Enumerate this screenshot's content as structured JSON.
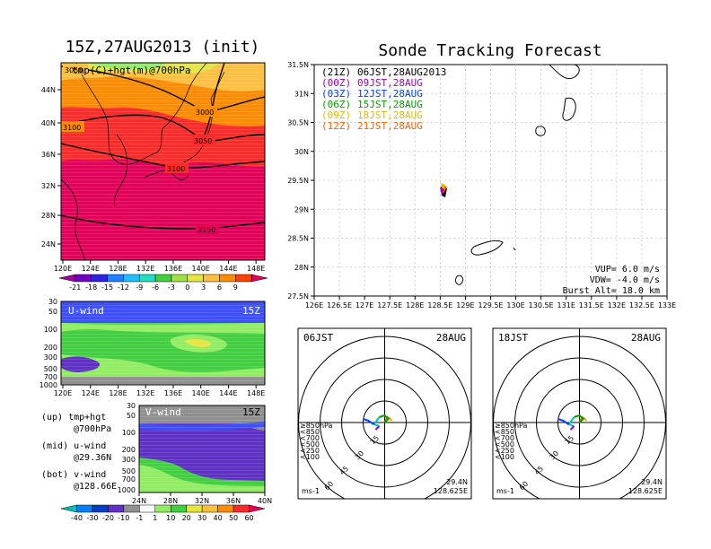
{
  "titles": {
    "left": "15Z,27AUG2013 (init)",
    "right": "Sonde Tracking Forecast",
    "map_overlay": "tmp(C)+hgt(m)@700hPa",
    "uwind_label": "U-wind",
    "uwind_time": "15Z",
    "vwind_label": "V-wind",
    "vwind_time": "15Z"
  },
  "colors": {
    "magenta": "#e6005a",
    "red": "#ff2a2a",
    "orange": "#ff8c00",
    "yellow_orange": "#ffc040",
    "yellow": "#e6e640",
    "green": "#40d040",
    "lightgreen": "#90ee60",
    "blue_bar": "#3c50ff",
    "purple": "#6030c8",
    "gray": "#909090",
    "track_00z": "#a000c0",
    "track_03z": "#0040ff",
    "track_06z": "#00a000",
    "track_09z": "#d8c000",
    "track_12z": "#ff6000"
  },
  "chart_data": [
    {
      "type": "heatmap",
      "name": "temperature-height-700hPa",
      "title": "15Z,27AUG2013 (init)",
      "subtitle": "tmp(C)+hgt(m)@700hPa",
      "x_ticks": [
        "120E",
        "124E",
        "128E",
        "132E",
        "136E",
        "140E",
        "144E",
        "148E"
      ],
      "y_ticks": [
        "24N",
        "28N",
        "32N",
        "36N",
        "40N",
        "44N"
      ],
      "contour_labels": [
        "3050",
        "3000",
        "3100",
        "3050",
        "3100",
        "3150"
      ],
      "colorbar_ticks": [
        "-21",
        "-18",
        "-15",
        "-12",
        "-9",
        "-6",
        "-3",
        "0",
        "3",
        "6",
        "9"
      ]
    },
    {
      "type": "heatmap",
      "name": "u-wind-cross-section",
      "label": "U-wind",
      "time": "15Z",
      "x_ticks": [
        "120E",
        "124E",
        "128E",
        "132E",
        "136E",
        "140E",
        "144E",
        "148E"
      ],
      "y_ticks": [
        "30",
        "50",
        "100",
        "200",
        "300",
        "500",
        "700",
        "1000"
      ]
    },
    {
      "type": "heatmap",
      "name": "v-wind-cross-section",
      "label": "V-wind",
      "time": "15Z",
      "x_ticks": [
        "24N",
        "28N",
        "32N",
        "36N",
        "40N"
      ],
      "y_ticks": [
        "30",
        "50",
        "100",
        "200",
        "300",
        "500",
        "700",
        "1000"
      ],
      "colorbar_ticks": [
        "-40",
        "-30",
        "-20",
        "-10",
        "-1",
        "1",
        "10",
        "20",
        "30",
        "40",
        "50",
        "60"
      ]
    },
    {
      "type": "scatter",
      "name": "sonde-tracking-map",
      "title": "Sonde Tracking Forecast",
      "x_ticks": [
        "126E",
        "126.5E",
        "127E",
        "127.5E",
        "128E",
        "128.5E",
        "129E",
        "129.5E",
        "130E",
        "130.5E",
        "131E",
        "131.5E",
        "132E",
        "132.5E",
        "133E"
      ],
      "y_ticks": [
        "31.5N",
        "31N",
        "30.5N",
        "30N",
        "29.5N",
        "29N",
        "28.5N",
        "28N",
        "27.5N"
      ],
      "xlim": [
        126,
        133
      ],
      "ylim": [
        27.5,
        31.5
      ],
      "legend": [
        {
          "time": "(21Z)",
          "label": "06JST,28AUG2013",
          "color": "#000000"
        },
        {
          "time": "(00Z)",
          "label": "09JST,28AUG",
          "color": "#a000c0"
        },
        {
          "time": "(03Z)",
          "label": "12JST,28AUG",
          "color": "#0040ff"
        },
        {
          "time": "(06Z)",
          "label": "15JST,28AUG",
          "color": "#00a000"
        },
        {
          "time": "(09Z)",
          "label": "18JST,28AUG",
          "color": "#d8c000"
        },
        {
          "time": "(12Z)",
          "label": "21JST,28AUG",
          "color": "#ff6000"
        }
      ],
      "params": [
        "VUP=  6.0  m/s",
        "VDW= -4.0  m/s",
        "Burst Alt=  18.0  km"
      ]
    },
    {
      "type": "scatter",
      "name": "hodograph-06jst",
      "corner_left": "06JST",
      "corner_right": "28AUG",
      "ring_labels": [
        "15",
        "30",
        "45",
        "60"
      ],
      "levels": [
        "≥850hPa",
        "<850",
        "<700",
        "<500",
        "<250",
        "<100"
      ],
      "unit": "ms-1",
      "lat": "29.4N",
      "lon": "128.625E"
    },
    {
      "type": "scatter",
      "name": "hodograph-18jst",
      "corner_left": "18JST",
      "corner_right": "28AUG",
      "ring_labels": [
        "15",
        "30",
        "45",
        "60"
      ],
      "levels": [
        "≥850hPa",
        "<850",
        "<700",
        "<500",
        "<250",
        "<100"
      ],
      "unit": "ms-1",
      "lat": "29.4N",
      "lon": "128.625E"
    }
  ],
  "legend_text": {
    "up": "(up) tmp+hgt",
    "up2": "@700hPa",
    "mid": "(mid) u-wind",
    "mid2": "@29.36N",
    "bot": "(bot) v-wind",
    "bot2": "@128.66E"
  }
}
